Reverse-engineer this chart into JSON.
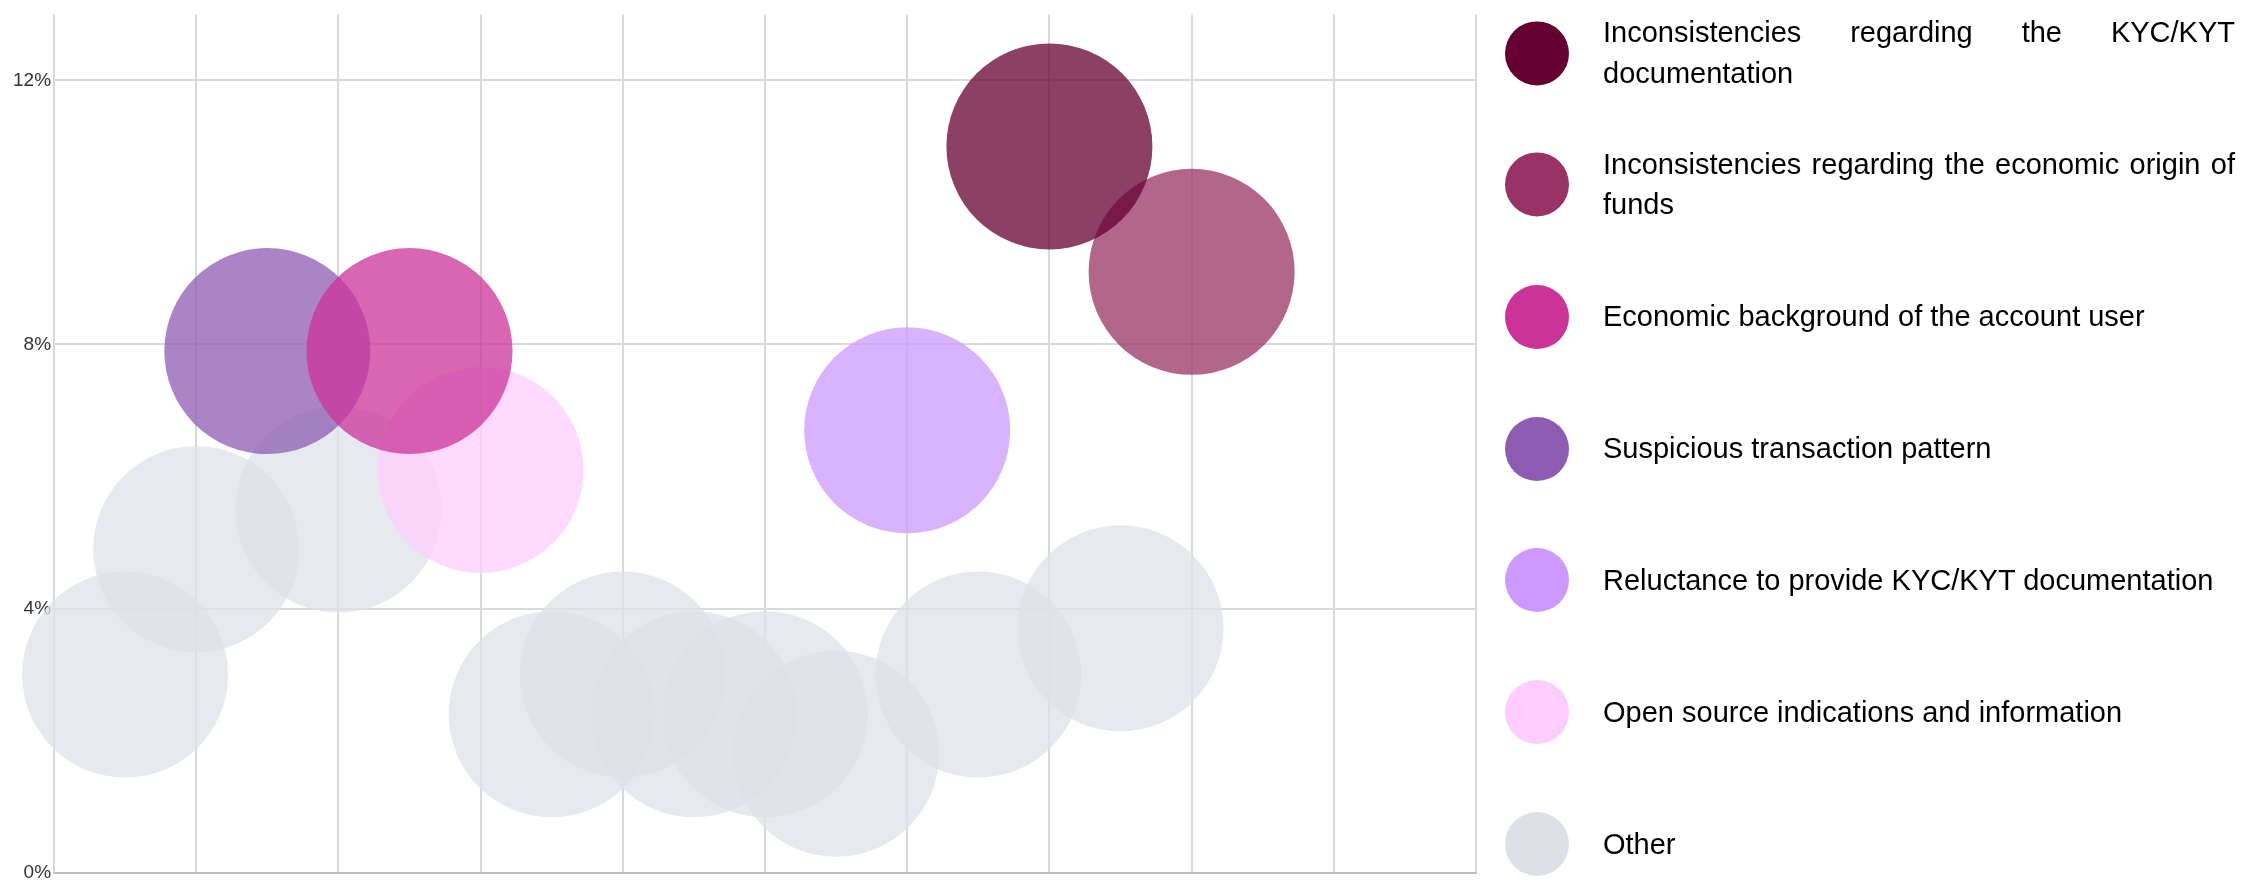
{
  "chart_data": {
    "type": "bubble",
    "categories": [
      null,
      null,
      null,
      null,
      null,
      null,
      null,
      null,
      null,
      null,
      null,
      null,
      null,
      null,
      null,
      null,
      null,
      null,
      null,
      null,
      null
    ],
    "ylim": [
      0,
      13
    ],
    "yticks": [
      {
        "value": 0,
        "label": "0%"
      },
      {
        "value": 4,
        "label": "4%"
      },
      {
        "value": 8,
        "label": "8%"
      },
      {
        "value": 12,
        "label": "12%"
      }
    ],
    "grid": true,
    "legend": "right",
    "tick_labels": "y",
    "series": [
      {
        "name": "Inconsistencies regarding the KYC/KYT documentation",
        "color": "#660033",
        "values": [
          null,
          null,
          null,
          null,
          null,
          null,
          null,
          null,
          null,
          null,
          null,
          null,
          null,
          null,
          11,
          null,
          null,
          null,
          null,
          null,
          null
        ]
      },
      {
        "name": "Inconsistencies regarding the economic origin of funds",
        "color": "#993366",
        "values": [
          null,
          null,
          null,
          null,
          null,
          null,
          null,
          null,
          null,
          null,
          null,
          null,
          null,
          null,
          null,
          null,
          9.1,
          null,
          null,
          null,
          null
        ]
      },
      {
        "name": "Economic background of the account user",
        "color": "#cc3399",
        "values": [
          null,
          null,
          null,
          null,
          null,
          7.9,
          null,
          null,
          null,
          null,
          null,
          null,
          null,
          null,
          null,
          null,
          null,
          null,
          null,
          null,
          null
        ]
      },
      {
        "name": "Suspicious transaction pattern",
        "color": "#8e5bb3",
        "values": [
          null,
          null,
          null,
          7.9,
          null,
          null,
          null,
          null,
          null,
          null,
          null,
          null,
          null,
          null,
          null,
          null,
          null,
          null,
          null,
          null,
          null
        ]
      },
      {
        "name": "Reluctance to provide KYC/KYT documentation",
        "color": "#cc99ff",
        "values": [
          null,
          null,
          null,
          null,
          null,
          null,
          null,
          null,
          null,
          null,
          null,
          null,
          6.7,
          null,
          null,
          null,
          null,
          null,
          null,
          null,
          null
        ]
      },
      {
        "name": "Open source indications and information",
        "color": "#ffccff",
        "values": [
          null,
          null,
          null,
          null,
          null,
          null,
          6.1,
          null,
          null,
          null,
          null,
          null,
          null,
          null,
          null,
          null,
          null,
          null,
          null,
          null,
          null
        ]
      },
      {
        "name": "Other",
        "color": "#dde1e7",
        "values": [
          null,
          3.0,
          4.9,
          null,
          5.5,
          null,
          null,
          2.4,
          3.0,
          2.4,
          2.4,
          1.8,
          null,
          3.0,
          null,
          3.7,
          null,
          null,
          null,
          null,
          null
        ]
      }
    ]
  }
}
